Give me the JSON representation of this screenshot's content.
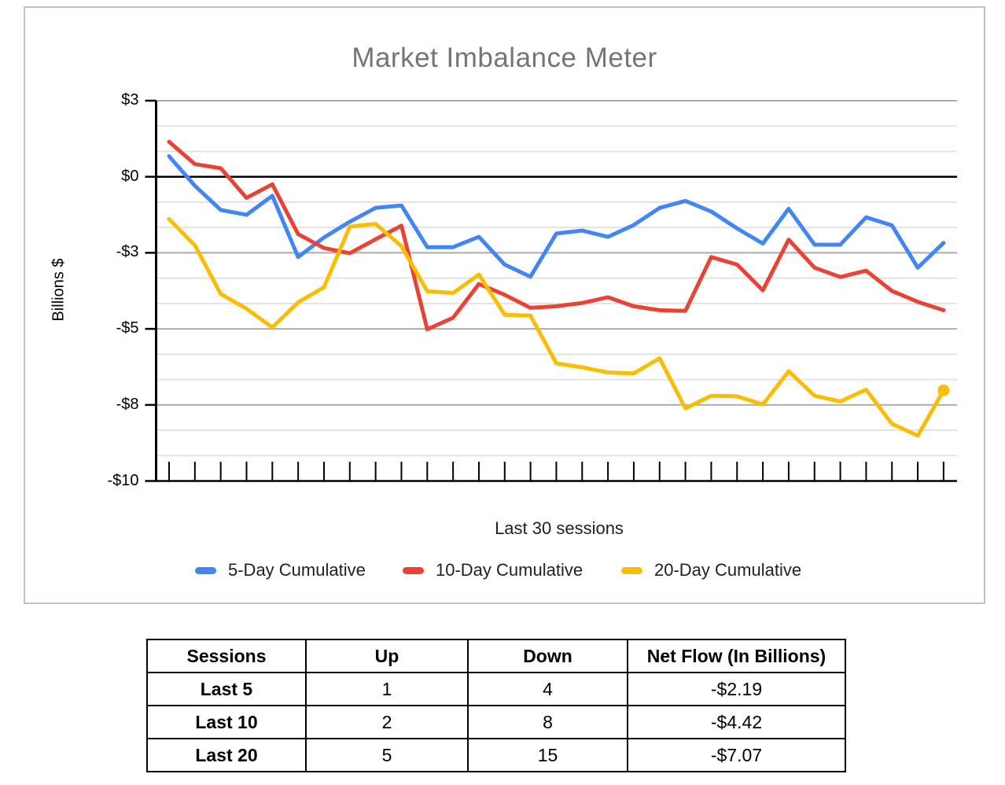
{
  "chart": {
    "title": "Market Imbalance Meter",
    "x_axis_title": "Last 30 sessions",
    "y_axis_title": "Billions $",
    "y_tick_labels": [
      "$3",
      "$0",
      "-$3",
      "-$5",
      "-$8",
      "-$10"
    ],
    "legend": [
      {
        "label": "5-Day Cumulative",
        "color": "#4285F4"
      },
      {
        "label": "10-Day Cumulative",
        "color": "#EA4335"
      },
      {
        "label": "20-Day Cumulative",
        "color": "#FBBC04"
      }
    ],
    "colors": {
      "title_gray": "#757575",
      "minor_gridline": "#e3e3e3",
      "major_gridline": "#ababab",
      "axis_black": "#000000"
    }
  },
  "chart_data": {
    "type": "line",
    "title": "Market Imbalance Meter",
    "xlabel": "Last 30 sessions",
    "ylabel": "Billions $",
    "ylim": [
      -10,
      3
    ],
    "grid": true,
    "legend_position": "bottom",
    "y_tick_labels": [
      "$3",
      "$0",
      "-$3",
      "-$5",
      "-$8",
      "-$10"
    ],
    "x": [
      1,
      2,
      3,
      4,
      5,
      6,
      7,
      8,
      9,
      10,
      11,
      12,
      13,
      14,
      15,
      16,
      17,
      18,
      19,
      20,
      21,
      22,
      23,
      24,
      25,
      26,
      27,
      28,
      29,
      30,
      31
    ],
    "series": [
      {
        "name": "5-Day Cumulative",
        "color": "#4285F4",
        "end_marker": false,
        "values": [
          0.68,
          -0.3,
          -1.1,
          -1.26,
          -0.63,
          -2.66,
          -2.01,
          -1.49,
          -1.03,
          -0.95,
          -2.33,
          -2.33,
          -1.99,
          -2.91,
          -3.31,
          -1.88,
          -1.78,
          -1.99,
          -1.6,
          -1.03,
          -0.8,
          -1.15,
          -1.71,
          -2.21,
          -1.06,
          -2.25,
          -2.25,
          -1.34,
          -1.61,
          -3.01,
          -2.19
        ]
      },
      {
        "name": "10-Day Cumulative",
        "color": "#EA4335",
        "end_marker": false,
        "values": [
          1.16,
          0.42,
          0.28,
          -0.7,
          -0.25,
          -1.9,
          -2.36,
          -2.53,
          -2.07,
          -1.62,
          -5.05,
          -4.67,
          -3.55,
          -3.91,
          -4.34,
          -4.29,
          -4.18,
          -3.99,
          -4.29,
          -4.42,
          -4.44,
          -2.66,
          -2.91,
          -3.76,
          -2.08,
          -3.01,
          -3.32,
          -3.11,
          -3.78,
          -4.14,
          -4.42
        ]
      },
      {
        "name": "20-Day Cumulative",
        "color": "#FBBC04",
        "end_marker": true,
        "values": [
          -1.4,
          -2.27,
          -3.88,
          -4.37,
          -4.99,
          -4.16,
          -3.66,
          -1.65,
          -1.56,
          -2.3,
          -3.79,
          -3.85,
          -3.24,
          -4.57,
          -4.6,
          -6.18,
          -6.31,
          -6.48,
          -6.51,
          -6.01,
          -7.67,
          -7.25,
          -7.27,
          -7.54,
          -6.44,
          -7.25,
          -7.44,
          -7.05,
          -8.18,
          -8.57,
          -7.07
        ]
      }
    ]
  },
  "table": {
    "headers": [
      "Sessions",
      "Up",
      "Down",
      "Net Flow (In Billions)"
    ],
    "rows": [
      [
        "Last 5",
        "1",
        "4",
        "-$2.19"
      ],
      [
        "Last 10",
        "2",
        "8",
        "-$4.42"
      ],
      [
        "Last 20",
        "5",
        "15",
        "-$7.07"
      ]
    ]
  }
}
